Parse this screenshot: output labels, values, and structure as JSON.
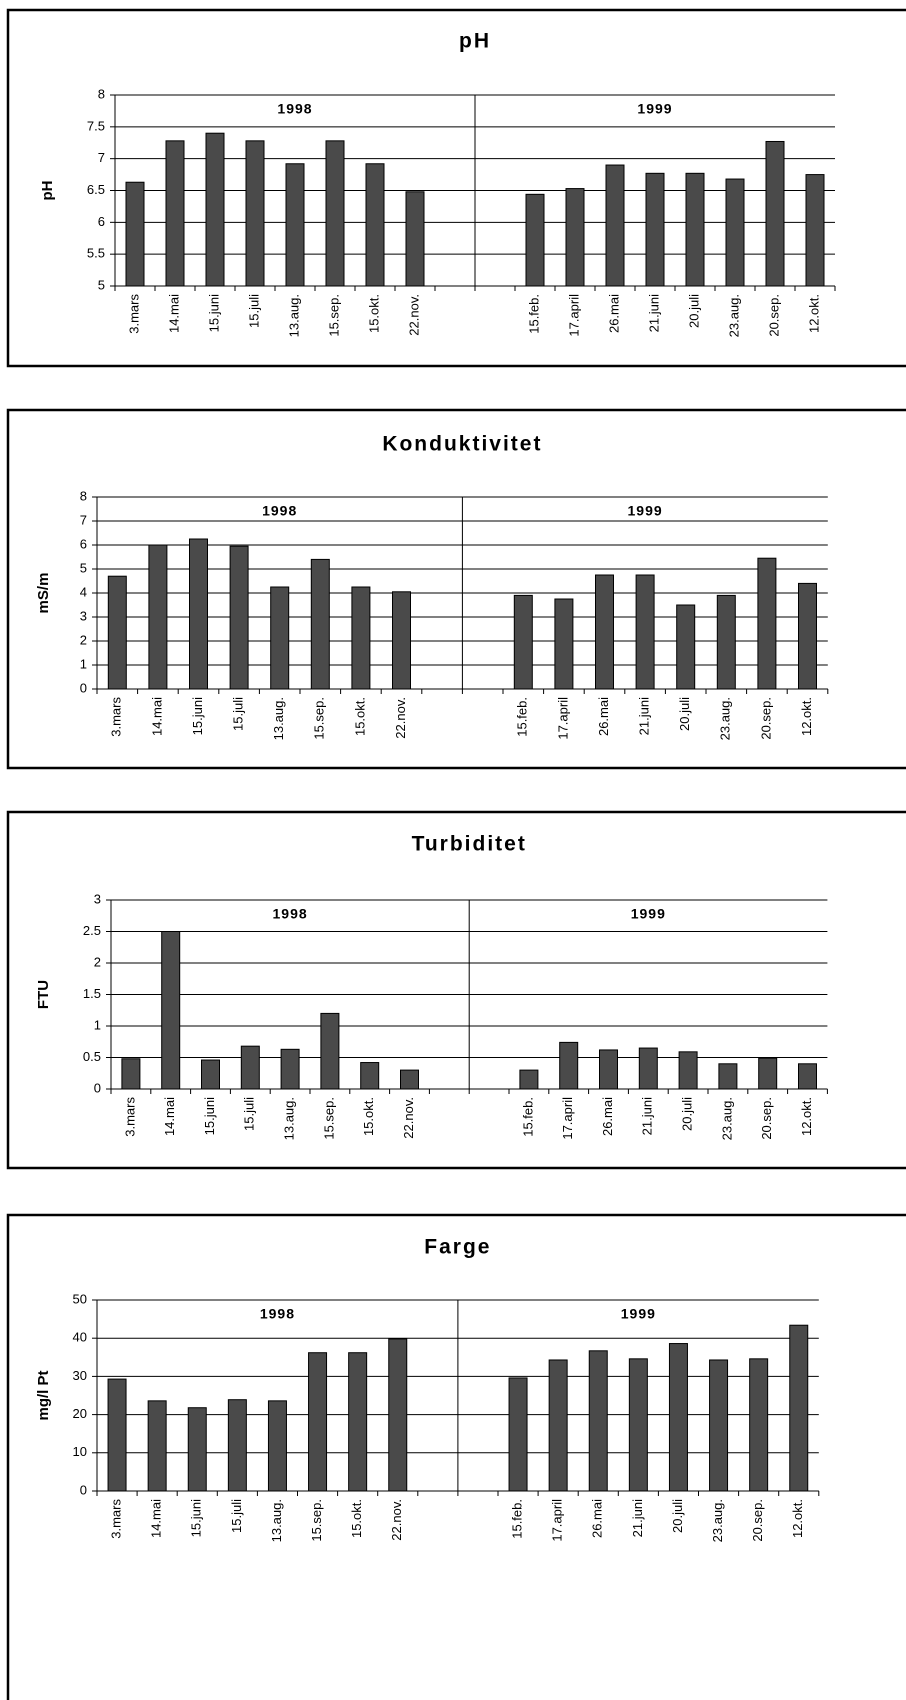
{
  "chart_data": [
    {
      "type": "bar",
      "title": "pH",
      "y_label": "pH",
      "categories": [
        "3.mars",
        "14.mai",
        "15.juni",
        "15.juli",
        "13.aug.",
        "15.sep.",
        "15.okt.",
        "22.nov.",
        null,
        null,
        "15.feb.",
        "17.april",
        "26.mai",
        "21.juni",
        "20.juli",
        "23.aug.",
        "20.sep.",
        "12.okt."
      ],
      "values": [
        6.63,
        7.28,
        7.4,
        7.28,
        6.92,
        7.28,
        6.92,
        6.48,
        null,
        null,
        6.44,
        6.53,
        6.9,
        6.77,
        6.77,
        6.68,
        7.27,
        6.75
      ],
      "color": "#4a4a4a",
      "ylim": [
        5,
        8
      ],
      "yticks": [
        5,
        5.5,
        6,
        6.5,
        7,
        7.5,
        8
      ],
      "grid": true,
      "annotations": [
        "1998",
        "1999"
      ]
    },
    {
      "type": "bar",
      "title": "Konduktivitet",
      "y_label": "mS/m",
      "categories": [
        "3.mars",
        "14.mai",
        "15.juni",
        "15.juli",
        "13.aug.",
        "15.sep.",
        "15.okt.",
        "22.nov.",
        null,
        null,
        "15.feb.",
        "17.april",
        "26.mai",
        "21.juni",
        "20.juli",
        "23.aug.",
        "20.sep.",
        "12.okt."
      ],
      "values": [
        4.7,
        6.0,
        6.25,
        5.95,
        4.25,
        5.4,
        4.25,
        4.05,
        null,
        null,
        3.9,
        3.75,
        4.75,
        4.75,
        3.5,
        3.9,
        5.45,
        4.4
      ],
      "color": "#4a4a4a",
      "ylim": [
        0,
        8
      ],
      "yticks": [
        0,
        1,
        2,
        3,
        4,
        5,
        6,
        7,
        8
      ],
      "grid": true,
      "annotations": [
        "1998",
        "1999"
      ]
    },
    {
      "type": "bar",
      "title": "Turbiditet",
      "y_label": "FTU",
      "categories": [
        "3.mars",
        "14.mai",
        "15.juni",
        "15.juli",
        "13.aug.",
        "15.sep.",
        "15.okt.",
        "22.nov.",
        null,
        null,
        "15.feb.",
        "17.april",
        "26.mai",
        "21.juni",
        "20.juli",
        "23.aug.",
        "20.sep.",
        "12.okt."
      ],
      "values": [
        0.48,
        2.5,
        0.46,
        0.68,
        0.63,
        1.2,
        0.42,
        0.3,
        null,
        null,
        0.3,
        0.74,
        0.62,
        0.65,
        0.59,
        0.4,
        0.49,
        0.4
      ],
      "color": "#4a4a4a",
      "ylim": [
        0,
        3
      ],
      "yticks": [
        0,
        0.5,
        1,
        1.5,
        2,
        2.5,
        3
      ],
      "grid": true,
      "annotations": [
        "1998",
        "1999"
      ]
    },
    {
      "type": "bar",
      "title": "Farge",
      "y_label": "mg/l Pt",
      "categories": [
        "3.mars",
        "14.mai",
        "15.juni",
        "15.juli",
        "13.aug.",
        "15.sep.",
        "15.okt.",
        "22.nov.",
        null,
        null,
        "15.feb.",
        "17.april",
        "26.mai",
        "21.juni",
        "20.juli",
        "23.aug.",
        "20.sep.",
        "12.okt."
      ],
      "values": [
        29.3,
        23.6,
        21.8,
        23.9,
        23.6,
        36.2,
        36.2,
        39.8,
        null,
        null,
        29.6,
        34.3,
        36.7,
        34.6,
        38.6,
        34.3,
        34.6,
        43.4
      ],
      "color": "#4a4a4a",
      "ylim": [
        0,
        50
      ],
      "yticks": [
        0,
        10,
        20,
        30,
        40,
        50
      ],
      "grid": true,
      "annotations": [
        "1998",
        "1999"
      ]
    }
  ]
}
